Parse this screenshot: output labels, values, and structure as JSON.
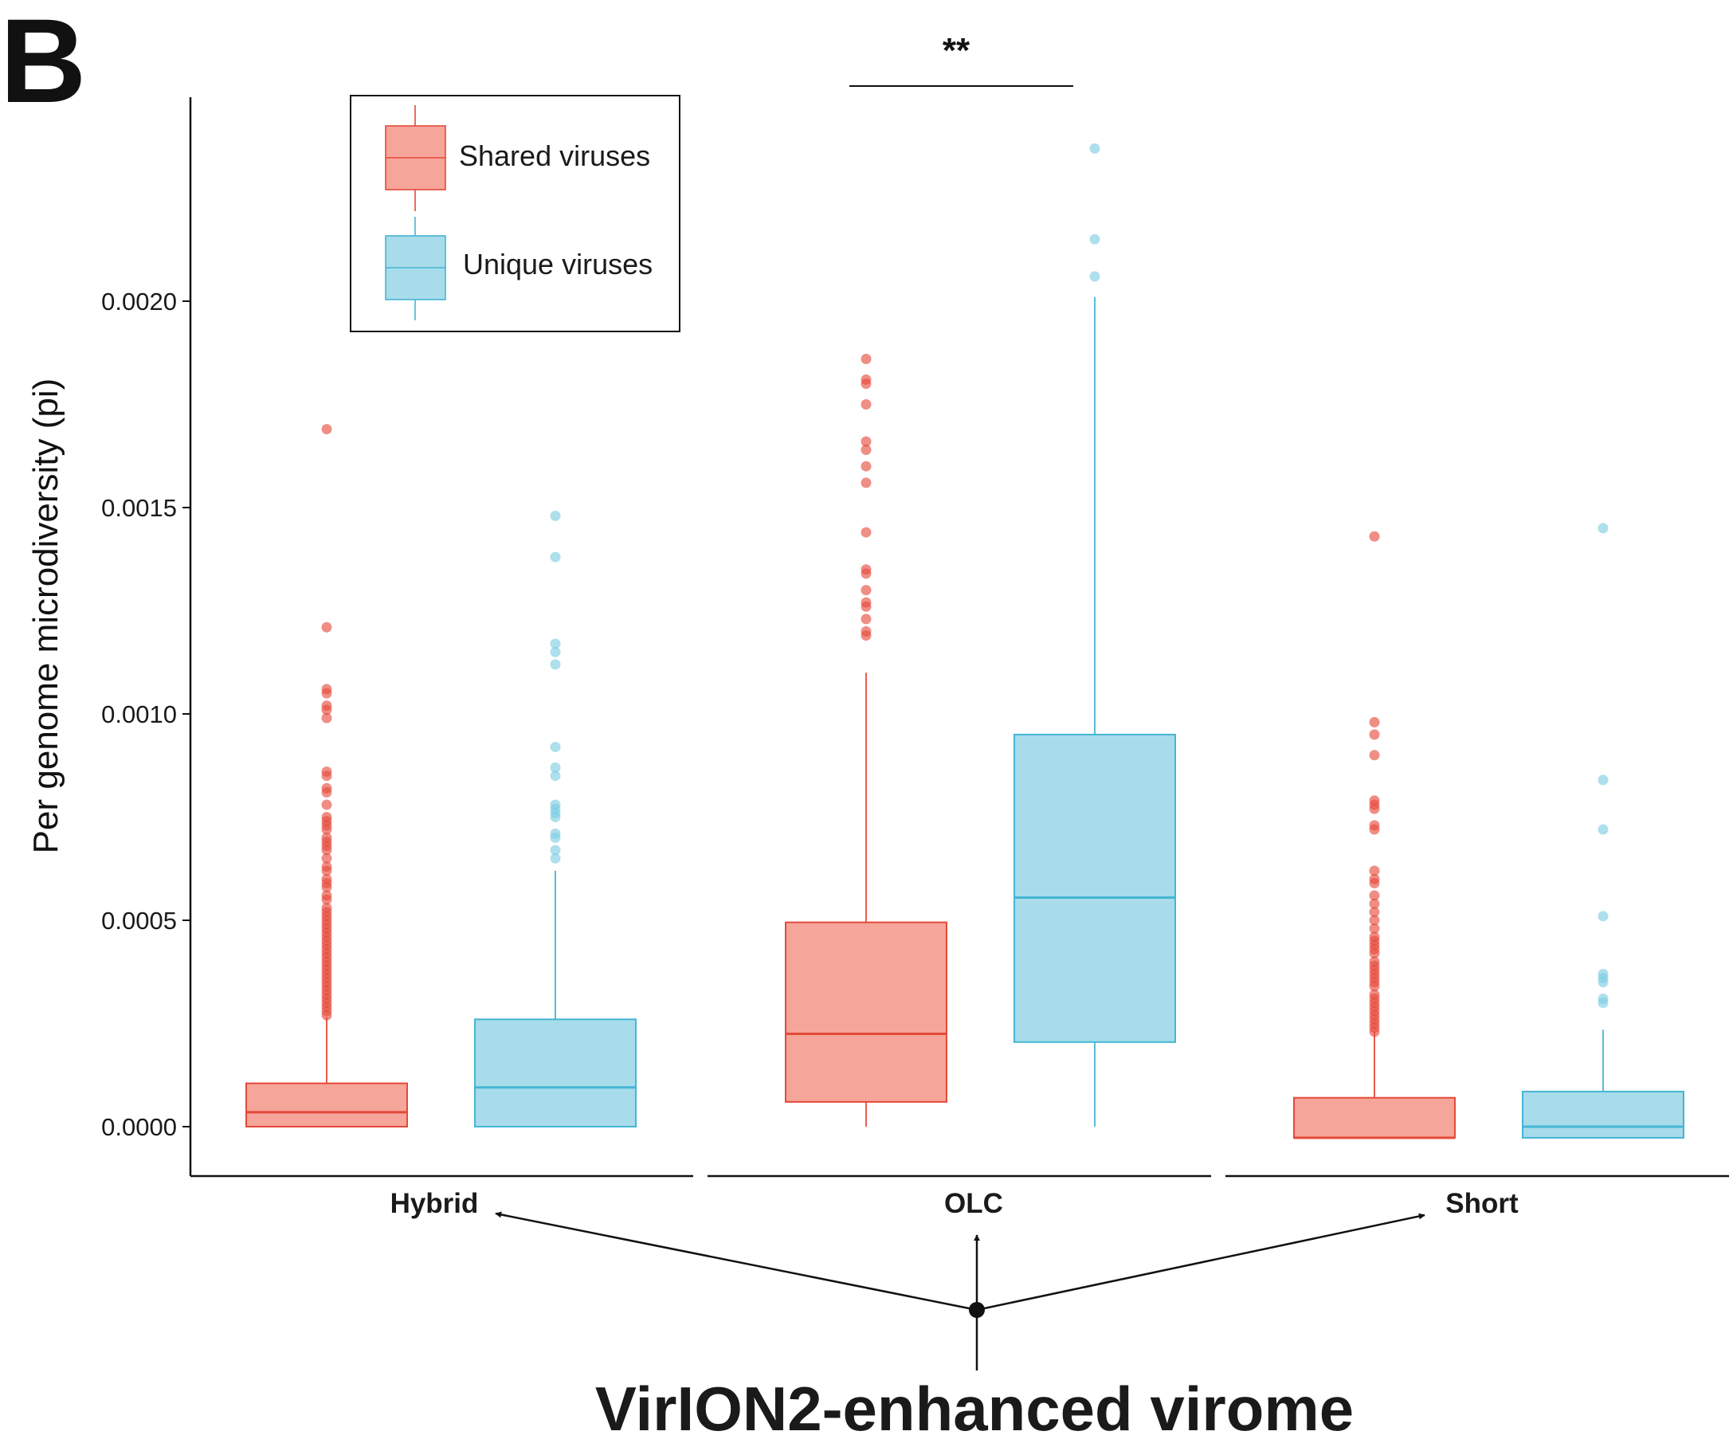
{
  "chart_data": {
    "type": "box",
    "panel_label": "B",
    "ylabel": "Per genome microdiversity (pi)",
    "xlabel": "VirION2-enhanced virome",
    "ylim": [
      -0.00012,
      0.0025
    ],
    "yticks": [
      {
        "value": 0.0,
        "label": "0.0000"
      },
      {
        "value": 0.0005,
        "label": "0.0005"
      },
      {
        "value": 0.001,
        "label": "0.0010"
      },
      {
        "value": 0.0015,
        "label": "0.0015"
      },
      {
        "value": 0.002,
        "label": "0.0020"
      }
    ],
    "categories": [
      "Hybrid",
      "OLC",
      "Short"
    ],
    "grid": false,
    "legend": {
      "position": "top-left",
      "entries": [
        {
          "name": "Shared viruses",
          "fill": "#f5a59a",
          "stroke": "#e5493a"
        },
        {
          "name": "Unique viruses",
          "fill": "#a8dceb",
          "stroke": "#45b5d4"
        }
      ]
    },
    "significance": {
      "groups": [
        "OLC"
      ],
      "label": "**"
    },
    "series": [
      {
        "name": "Shared viruses",
        "fill": "#f5a59a",
        "stroke": "#e5493a",
        "point_color": "#e5493a",
        "boxes": [
          {
            "category": "Hybrid",
            "whisker_low": 0.0,
            "q1": 0.0,
            "median": 3.5e-05,
            "q3": 0.000105,
            "whisker_high": 0.000265,
            "outliers": [
              0.00169,
              0.00121,
              0.00106,
              0.00105,
              0.00102,
              0.00101,
              0.00099,
              0.00086,
              0.00085,
              0.00082,
              0.00081,
              0.00078,
              0.00075,
              0.00074,
              0.00073,
              0.00072,
              0.0007,
              0.00069,
              0.00068,
              0.00067,
              0.00065,
              0.00063,
              0.00062,
              0.0006,
              0.00059,
              0.00058,
              0.00056,
              0.00055,
              0.00053,
              0.00052,
              0.00051,
              0.0005,
              0.00049,
              0.00048,
              0.00047,
              0.00046,
              0.00045,
              0.00044,
              0.00043,
              0.00042,
              0.00041,
              0.0004,
              0.00039,
              0.00038,
              0.00037,
              0.00036,
              0.00035,
              0.00034,
              0.00033,
              0.00032,
              0.00031,
              0.0003,
              0.00029,
              0.00028,
              0.00027
            ]
          },
          {
            "category": "OLC",
            "whisker_low": 0.0,
            "q1": 6e-05,
            "median": 0.000225,
            "q3": 0.000495,
            "whisker_high": 0.0011,
            "outliers": [
              0.00186,
              0.00181,
              0.0018,
              0.00175,
              0.00166,
              0.00164,
              0.0016,
              0.00156,
              0.00144,
              0.00135,
              0.00134,
              0.0013,
              0.00127,
              0.00126,
              0.00123,
              0.0012,
              0.00119
            ]
          },
          {
            "category": "Short",
            "whisker_low": -2.7e-05,
            "q1": -2.7e-05,
            "median": -2.7e-05,
            "q3": 7e-05,
            "whisker_high": 0.00023,
            "outliers": [
              0.00143,
              0.00098,
              0.00095,
              0.0009,
              0.00079,
              0.00078,
              0.00077,
              0.00073,
              0.00072,
              0.00062,
              0.0006,
              0.00059,
              0.00056,
              0.00054,
              0.00052,
              0.0005,
              0.00048,
              0.00046,
              0.00045,
              0.00044,
              0.00043,
              0.00042,
              0.0004,
              0.00039,
              0.00038,
              0.00037,
              0.00036,
              0.00035,
              0.00034,
              0.00032,
              0.00031,
              0.0003,
              0.00029,
              0.00028,
              0.00027,
              0.00026,
              0.00025,
              0.00024,
              0.00023
            ]
          }
        ]
      },
      {
        "name": "Unique viruses",
        "fill": "#a8dceb",
        "stroke": "#45b5d4",
        "point_color": "#7ccbe2",
        "boxes": [
          {
            "category": "Hybrid",
            "whisker_low": 0.0,
            "q1": 0.0,
            "median": 9.5e-05,
            "q3": 0.00026,
            "whisker_high": 0.00062,
            "outliers": [
              0.00148,
              0.00138,
              0.00117,
              0.00115,
              0.00112,
              0.00092,
              0.00087,
              0.00085,
              0.00078,
              0.00077,
              0.00076,
              0.00075,
              0.00071,
              0.0007,
              0.00067,
              0.00065
            ]
          },
          {
            "category": "OLC",
            "whisker_low": 0.0,
            "q1": 0.000205,
            "median": 0.000555,
            "q3": 0.00095,
            "whisker_high": 0.00201,
            "outliers": [
              0.00237,
              0.00215,
              0.00206
            ]
          },
          {
            "category": "Short",
            "whisker_low": -2.7e-05,
            "q1": -2.7e-05,
            "median": 0.0,
            "q3": 8.5e-05,
            "whisker_high": 0.000235,
            "outliers": [
              0.00145,
              0.00084,
              0.00072,
              0.00051,
              0.00037,
              0.00036,
              0.00035,
              0.00031,
              0.0003
            ]
          }
        ]
      }
    ]
  }
}
